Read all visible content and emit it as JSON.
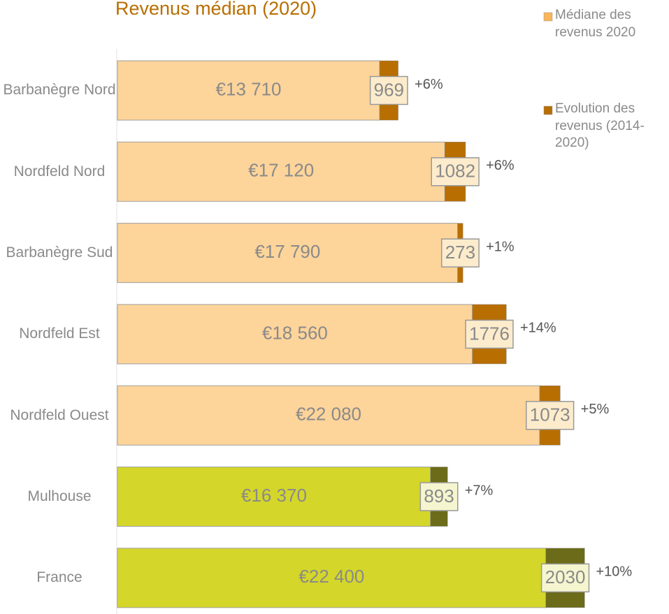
{
  "chart_data": {
    "type": "stacked-bar-horizontal",
    "title": "Revenus médian (2020)",
    "categories": [
      "Barbanègre Nord",
      "Nordfeld Nord",
      "Barbanègre Sud",
      "Nordfeld Est",
      "Nordfeld Ouest",
      "Mulhouse",
      "France"
    ],
    "xlim": [
      0,
      28000
    ],
    "series": [
      {
        "name": "Médiane  des revenus 2020",
        "color": "#f9b55a",
        "colors": [
          "#fdd49a",
          "#fdd49a",
          "#fdd49a",
          "#fdd49a",
          "#fdd49a",
          "#d4d62a",
          "#d4d62a"
        ],
        "values": [
          13710,
          17120,
          17790,
          18560,
          22080,
          16370,
          22400
        ],
        "value_labels": [
          "€13 710",
          "€17 120",
          "€17 790",
          "€18 560",
          "€22 080",
          "€16 370",
          "€22 400"
        ]
      },
      {
        "name": "Evolution des revenus (2014-2020)",
        "color": "#b86e00",
        "colors": [
          "#b86e00",
          "#b86e00",
          "#b86e00",
          "#b86e00",
          "#b86e00",
          "#6b6b1a",
          "#6b6b1a"
        ],
        "values": [
          969,
          1082,
          273,
          1776,
          1073,
          893,
          2030
        ],
        "annotations": [
          "+6%",
          "+6%",
          "+1%",
          "+14%",
          "+5%",
          "+7%",
          "+10%"
        ]
      }
    ],
    "legend": "top-right"
  }
}
